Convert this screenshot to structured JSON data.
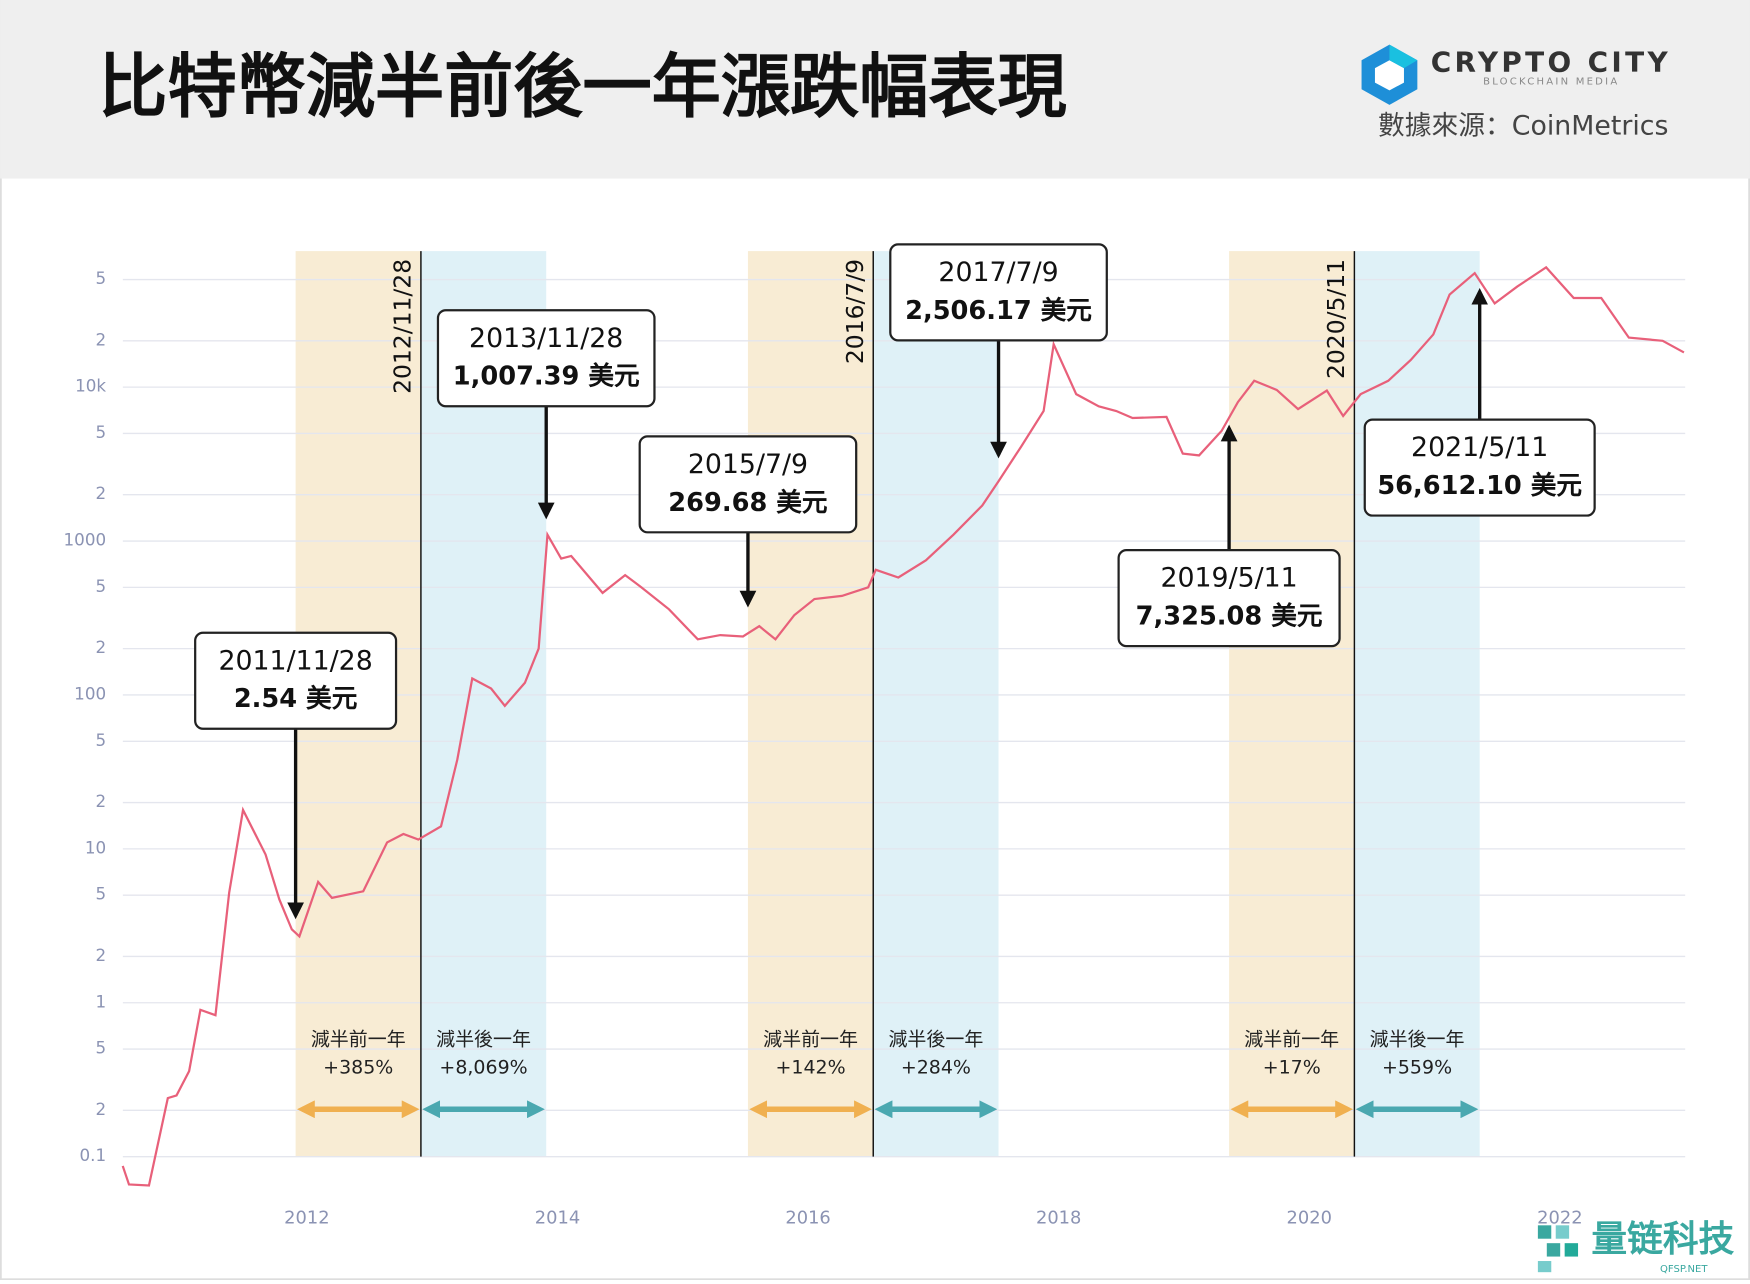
{
  "chart_data": {
    "type": "line",
    "title": "比特幣減半前後一年漲跌幅表現",
    "brand": "CRYPTO CITY",
    "brand_subtitle": "BLOCKCHAIN MEDIA",
    "source": "數據來源：CoinMetrics",
    "watermark": "量链科技",
    "watermark_subtitle": "QFSP.NET",
    "log_scale": true,
    "grid": true,
    "color": "#e8607a",
    "x": [
      2010.53,
      2010.58,
      2010.74,
      2010.89,
      2010.96,
      2011.06,
      2011.15,
      2011.27,
      2011.38,
      2011.49,
      2011.67,
      2011.78,
      2011.88,
      2011.94,
      2012.09,
      2012.2,
      2012.45,
      2012.64,
      2012.77,
      2012.89,
      2013.07,
      2013.2,
      2013.32,
      2013.47,
      2013.58,
      2013.74,
      2013.85,
      2013.92,
      2014.03,
      2014.11,
      2014.36,
      2014.54,
      2014.67,
      2014.89,
      2015.12,
      2015.3,
      2015.48,
      2015.61,
      2015.74,
      2015.89,
      2016.05,
      2016.27,
      2016.48,
      2016.54,
      2016.72,
      2016.94,
      2017.16,
      2017.39,
      2017.52,
      2017.7,
      2017.88,
      2017.96,
      2018.14,
      2018.32,
      2018.46,
      2018.59,
      2018.86,
      2018.99,
      2019.12,
      2019.3,
      2019.43,
      2019.56,
      2019.74,
      2019.91,
      2020.14,
      2020.27,
      2020.41,
      2020.63,
      2020.81,
      2020.99,
      2021.12,
      2021.32,
      2021.48,
      2021.66,
      2021.89,
      2022.11,
      2022.33,
      2022.55,
      2022.82,
      2022.99
    ],
    "values": [
      0.087,
      0.066,
      0.065,
      0.24,
      0.25,
      0.36,
      0.9,
      0.83,
      5.2,
      17.9,
      9.2,
      4.7,
      3.0,
      2.7,
      6.1,
      4.8,
      5.3,
      11,
      12.5,
      11.5,
      14,
      38,
      128,
      110,
      85,
      120,
      200,
      1100,
      770,
      800,
      460,
      600,
      500,
      360,
      230,
      245,
      240,
      280,
      230,
      330,
      420,
      440,
      500,
      650,
      580,
      750,
      1100,
      1700,
      2450,
      4100,
      7000,
      19000,
      9000,
      7500,
      7000,
      6300,
      6400,
      3700,
      3600,
      5200,
      8000,
      11000,
      9600,
      7200,
      9500,
      6500,
      9000,
      11000,
      15000,
      22000,
      40000,
      55000,
      35000,
      45000,
      60000,
      38000,
      38000,
      21000,
      20000,
      16800
    ],
    "xlim": [
      2010.5,
      2023.0
    ],
    "xticks": [
      2012,
      2014,
      2016,
      2018,
      2020,
      2022
    ],
    "ylim": [
      0.05,
      100000
    ],
    "yticks": [
      0.1,
      {
        "value": 0.2,
        "label": "2"
      },
      {
        "value": 0.5,
        "label": "5"
      },
      1,
      {
        "value": 2,
        "label": "2"
      },
      {
        "value": 5,
        "label": "5"
      },
      10,
      {
        "value": 20,
        "label": "2"
      },
      {
        "value": 50,
        "label": "5"
      },
      100,
      {
        "value": 200,
        "label": "2"
      },
      {
        "value": 500,
        "label": "5"
      },
      1000,
      {
        "value": 2000,
        "label": "2"
      },
      {
        "value": 5000,
        "label": "5"
      },
      {
        "value": 10000,
        "label": "10k"
      },
      {
        "value": 20000,
        "label": "2"
      },
      {
        "value": 50000,
        "label": "5"
      }
    ],
    "halvings": [
      {
        "label": "2012/11/28",
        "x": 2012.91,
        "period_labels": [
          "減半前一年",
          "減半後一年"
        ],
        "changes": [
          385,
          8069
        ],
        "change_labels": [
          "+385%",
          "+8,069%"
        ]
      },
      {
        "label": "2016/7/9",
        "x": 2016.52,
        "period_labels": [
          "減半前一年",
          "減半後一年"
        ],
        "changes": [
          142,
          284
        ],
        "change_labels": [
          "+142%",
          "+284%"
        ]
      },
      {
        "label": "2020/5/11",
        "x": 2020.36,
        "period_labels": [
          "減半前一年",
          "減半後一年"
        ],
        "changes": [
          17,
          559
        ],
        "change_labels": [
          "+17%",
          "+559%"
        ]
      }
    ],
    "annotations": [
      {
        "date": "2011/11/28",
        "x": 2011.91,
        "price": 2.54,
        "price_label": "2.54 美元"
      },
      {
        "date": "2013/11/28",
        "x": 2013.91,
        "price": 1007.39,
        "price_label": "1,007.39 美元"
      },
      {
        "date": "2015/7/9",
        "x": 2015.52,
        "price": 269.68,
        "price_label": "269.68 美元"
      },
      {
        "date": "2017/7/9",
        "x": 2017.52,
        "price": 2506.17,
        "price_label": "2,506.17 美元"
      },
      {
        "date": "2019/5/11",
        "x": 2019.36,
        "price": 7325.08,
        "price_label": "7,325.08 美元"
      },
      {
        "date": "2021/5/11",
        "x": 2021.36,
        "price": 56612.1,
        "price_label": "56,612.10 美元"
      }
    ]
  }
}
